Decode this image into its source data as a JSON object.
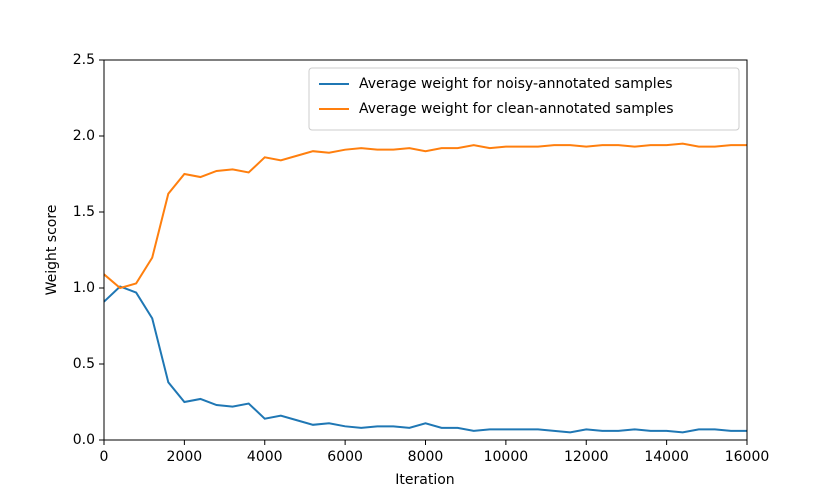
{
  "chart_data": {
    "type": "line",
    "xlabel": "Iteration",
    "ylabel": "Weight score",
    "x": [
      0,
      400,
      800,
      1200,
      1600,
      2000,
      2400,
      2800,
      3200,
      3600,
      4000,
      4400,
      4800,
      5200,
      5600,
      6000,
      6400,
      6800,
      7200,
      7600,
      8000,
      8400,
      8800,
      9200,
      9600,
      10000,
      10400,
      10800,
      11200,
      11600,
      12000,
      12400,
      12800,
      13200,
      13600,
      14000,
      14400,
      14800,
      15200,
      15600,
      16000
    ],
    "series": [
      {
        "name": "Average weight for noisy-annotated samples",
        "color": "#1f77b4",
        "values": [
          0.91,
          1.01,
          0.97,
          0.8,
          0.38,
          0.25,
          0.27,
          0.23,
          0.22,
          0.24,
          0.14,
          0.16,
          0.13,
          0.1,
          0.11,
          0.09,
          0.08,
          0.09,
          0.09,
          0.08,
          0.11,
          0.08,
          0.08,
          0.06,
          0.07,
          0.07,
          0.07,
          0.07,
          0.06,
          0.05,
          0.07,
          0.06,
          0.06,
          0.07,
          0.06,
          0.06,
          0.05,
          0.07,
          0.07,
          0.06,
          0.06
        ]
      },
      {
        "name": "Average weight for clean-annotated samples",
        "color": "#ff7f0e",
        "values": [
          1.09,
          1.0,
          1.03,
          1.2,
          1.62,
          1.75,
          1.73,
          1.77,
          1.78,
          1.76,
          1.86,
          1.84,
          1.87,
          1.9,
          1.89,
          1.91,
          1.92,
          1.91,
          1.91,
          1.92,
          1.9,
          1.92,
          1.92,
          1.94,
          1.92,
          1.93,
          1.93,
          1.93,
          1.94,
          1.94,
          1.93,
          1.94,
          1.94,
          1.93,
          1.94,
          1.94,
          1.95,
          1.93,
          1.93,
          1.94,
          1.94
        ]
      }
    ],
    "xlim": [
      0,
      16000
    ],
    "xticks": [
      0,
      2000,
      4000,
      6000,
      8000,
      10000,
      12000,
      14000,
      16000
    ],
    "ylim": [
      0,
      2.5
    ],
    "yticks": [
      {
        "value": 0,
        "label": "0.0"
      },
      0.5,
      {
        "value": 1,
        "label": "1.0"
      },
      1.5,
      {
        "value": 2,
        "label": "2.0"
      },
      2.5
    ],
    "legend": "upper right",
    "grid": false
  }
}
